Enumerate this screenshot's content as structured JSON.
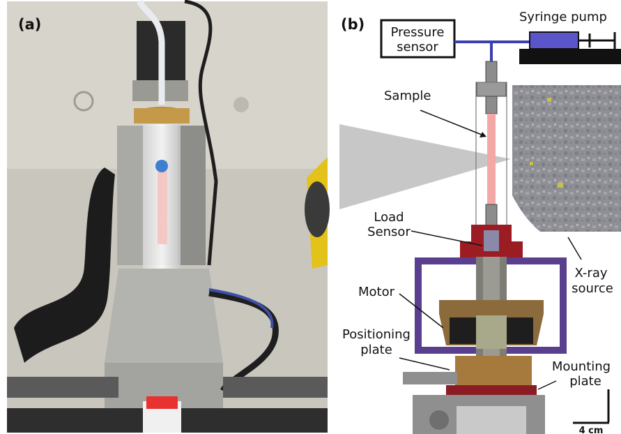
{
  "panels": {
    "a": {
      "label": "(a)"
    },
    "b": {
      "label": "(b)"
    }
  },
  "labels": {
    "pressure_sensor": [
      "Pressure",
      "sensor"
    ],
    "syringe_pump": "Syringe pump",
    "sample": "Sample",
    "load_sensor": [
      "Load",
      "Sensor"
    ],
    "xray_source": [
      "X-ray",
      "source"
    ],
    "motor": "Motor",
    "positioning_plate": [
      "Positioning",
      "plate"
    ],
    "mounting_plate": [
      "Mounting",
      "plate"
    ],
    "scale_bar": "4 cm"
  },
  "colors": {
    "tubing": "#3a3fb0",
    "sample": "#f4a7a7",
    "load_sensor_housing": "#9c1c24",
    "motor_frame": "#5a3f8f",
    "mounting_plate": "#8b1c24",
    "xray_beam": "#bdbdbd",
    "detector": "#9a9a9a"
  }
}
